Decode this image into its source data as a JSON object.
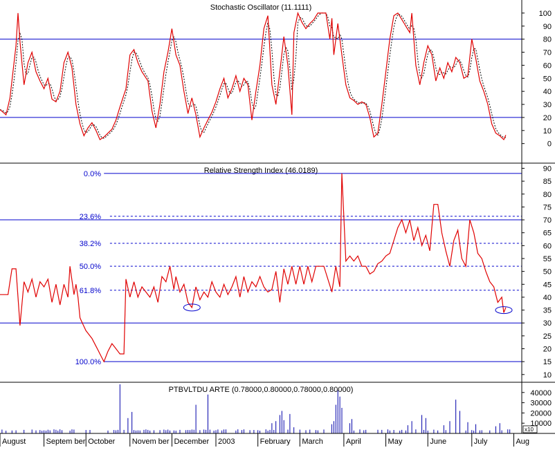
{
  "colors": {
    "background": "#ffffff",
    "frame": "#000000",
    "price_line": "#e00000",
    "signal_line": "#000000",
    "level_line": "#0000cc",
    "volume_bar": "#0000aa",
    "fib_label": "#0000cc"
  },
  "x_axis": {
    "month_labels": [
      "August",
      "Septem ber",
      "October",
      "Novem ber",
      "December",
      "2003",
      "February",
      "March",
      "April",
      "May",
      "June",
      "July",
      "Aug"
    ],
    "month_starts": [
      0,
      22,
      43,
      65,
      86,
      108,
      129,
      150,
      172,
      193,
      214,
      236,
      257
    ],
    "total_sessions": 262
  },
  "chart_data": [
    {
      "type": "line",
      "title": "Stochastic Oscillator (11.1111)",
      "ylim": [
        -15,
        110
      ],
      "yticks": [
        "0",
        "10",
        "20",
        "30",
        "40",
        "50",
        "60",
        "70",
        "80",
        "90",
        "100"
      ],
      "ytick_values": [
        0,
        10,
        20,
        30,
        40,
        50,
        60,
        70,
        80,
        90,
        100
      ],
      "levels": [
        20,
        80
      ],
      "anchors": [
        [
          0,
          26
        ],
        [
          3,
          22
        ],
        [
          5,
          35
        ],
        [
          8,
          75
        ],
        [
          9,
          100
        ],
        [
          10,
          78
        ],
        [
          12,
          45
        ],
        [
          14,
          62
        ],
        [
          16,
          70
        ],
        [
          18,
          55
        ],
        [
          20,
          48
        ],
        [
          22,
          42
        ],
        [
          24,
          50
        ],
        [
          26,
          34
        ],
        [
          28,
          32
        ],
        [
          30,
          40
        ],
        [
          32,
          62
        ],
        [
          34,
          70
        ],
        [
          36,
          58
        ],
        [
          38,
          30
        ],
        [
          40,
          15
        ],
        [
          42,
          6
        ],
        [
          44,
          12
        ],
        [
          46,
          16
        ],
        [
          48,
          10
        ],
        [
          50,
          3
        ],
        [
          52,
          5
        ],
        [
          54,
          8
        ],
        [
          56,
          11
        ],
        [
          58,
          18
        ],
        [
          60,
          28
        ],
        [
          63,
          42
        ],
        [
          65,
          68
        ],
        [
          67,
          72
        ],
        [
          69,
          62
        ],
        [
          71,
          55
        ],
        [
          74,
          48
        ],
        [
          76,
          25
        ],
        [
          78,
          12
        ],
        [
          80,
          30
        ],
        [
          82,
          55
        ],
        [
          84,
          70
        ],
        [
          86,
          88
        ],
        [
          88,
          68
        ],
        [
          90,
          60
        ],
        [
          92,
          40
        ],
        [
          94,
          23
        ],
        [
          96,
          35
        ],
        [
          98,
          22
        ],
        [
          100,
          5
        ],
        [
          102,
          12
        ],
        [
          104,
          18
        ],
        [
          106,
          24
        ],
        [
          108,
          32
        ],
        [
          110,
          42
        ],
        [
          112,
          50
        ],
        [
          114,
          35
        ],
        [
          116,
          42
        ],
        [
          118,
          52
        ],
        [
          120,
          40
        ],
        [
          122,
          50
        ],
        [
          124,
          45
        ],
        [
          126,
          18
        ],
        [
          128,
          40
        ],
        [
          130,
          60
        ],
        [
          132,
          88
        ],
        [
          134,
          98
        ],
        [
          136,
          45
        ],
        [
          138,
          30
        ],
        [
          140,
          55
        ],
        [
          142,
          82
        ],
        [
          144,
          60
        ],
        [
          146,
          22
        ],
        [
          147,
          85
        ],
        [
          149,
          100
        ],
        [
          151,
          93
        ],
        [
          153,
          88
        ],
        [
          155,
          92
        ],
        [
          157,
          95
        ],
        [
          159,
          100
        ],
        [
          163,
          100
        ],
        [
          165,
          80
        ],
        [
          166,
          96
        ],
        [
          167,
          68
        ],
        [
          168,
          80
        ],
        [
          169,
          92
        ],
        [
          171,
          68
        ],
        [
          173,
          45
        ],
        [
          175,
          35
        ],
        [
          177,
          33
        ],
        [
          179,
          30
        ],
        [
          181,
          32
        ],
        [
          183,
          30
        ],
        [
          185,
          20
        ],
        [
          187,
          5
        ],
        [
          189,
          8
        ],
        [
          191,
          30
        ],
        [
          193,
          55
        ],
        [
          195,
          80
        ],
        [
          197,
          98
        ],
        [
          199,
          100
        ],
        [
          201,
          95
        ],
        [
          203,
          90
        ],
        [
          205,
          85
        ],
        [
          206,
          100
        ],
        [
          208,
          60
        ],
        [
          210,
          45
        ],
        [
          212,
          62
        ],
        [
          214,
          75
        ],
        [
          216,
          68
        ],
        [
          218,
          48
        ],
        [
          220,
          58
        ],
        [
          222,
          50
        ],
        [
          224,
          62
        ],
        [
          226,
          55
        ],
        [
          228,
          66
        ],
        [
          230,
          62
        ],
        [
          232,
          50
        ],
        [
          234,
          52
        ],
        [
          236,
          80
        ],
        [
          238,
          65
        ],
        [
          240,
          48
        ],
        [
          242,
          40
        ],
        [
          244,
          30
        ],
        [
          246,
          15
        ],
        [
          248,
          8
        ],
        [
          250,
          6
        ],
        [
          252,
          3
        ],
        [
          254,
          10
        ]
      ],
      "signal_lag": 1
    },
    {
      "type": "line",
      "title": "Relative Strength Index (46.0189)",
      "ylim": [
        7,
        92
      ],
      "yticks": [
        "10",
        "15",
        "20",
        "25",
        "30",
        "35",
        "40",
        "45",
        "50",
        "55",
        "60",
        "65",
        "70",
        "75",
        "80",
        "85",
        "90"
      ],
      "ytick_values": [
        10,
        15,
        20,
        25,
        30,
        35,
        40,
        45,
        50,
        55,
        60,
        65,
        70,
        75,
        80,
        85,
        90
      ],
      "levels": [
        30,
        70
      ],
      "fibonacci": [
        {
          "label": "0.0%",
          "value": 88
        },
        {
          "label": "23.6%",
          "value": 71.4
        },
        {
          "label": "38.2%",
          "value": 60.9
        },
        {
          "label": "50.0%",
          "value": 52.0
        },
        {
          "label": "61.8%",
          "value": 42.7
        },
        {
          "label": "100.0%",
          "value": 15
        }
      ],
      "anchors": [
        [
          0,
          41
        ],
        [
          4,
          41
        ],
        [
          6,
          51
        ],
        [
          8,
          51
        ],
        [
          10,
          29
        ],
        [
          12,
          46
        ],
        [
          14,
          42
        ],
        [
          16,
          47
        ],
        [
          18,
          40
        ],
        [
          20,
          46
        ],
        [
          22,
          44
        ],
        [
          24,
          47
        ],
        [
          26,
          38
        ],
        [
          28,
          45
        ],
        [
          30,
          37
        ],
        [
          32,
          45
        ],
        [
          34,
          40
        ],
        [
          35,
          52
        ],
        [
          37,
          41
        ],
        [
          38,
          45
        ],
        [
          39,
          40
        ],
        [
          40,
          32
        ],
        [
          43,
          27
        ],
        [
          46,
          24
        ],
        [
          48,
          21
        ],
        [
          50,
          18
        ],
        [
          52,
          15
        ],
        [
          54,
          19
        ],
        [
          56,
          22
        ],
        [
          58,
          20
        ],
        [
          60,
          18
        ],
        [
          62,
          18
        ],
        [
          63,
          47
        ],
        [
          65,
          40
        ],
        [
          67,
          46
        ],
        [
          69,
          40
        ],
        [
          71,
          44
        ],
        [
          73,
          42
        ],
        [
          75,
          40
        ],
        [
          77,
          44
        ],
        [
          79,
          38
        ],
        [
          81,
          48
        ],
        [
          83,
          46
        ],
        [
          85,
          52
        ],
        [
          87,
          43
        ],
        [
          88,
          48
        ],
        [
          90,
          42
        ],
        [
          92,
          45
        ],
        [
          94,
          38
        ],
        [
          96,
          36
        ],
        [
          98,
          44
        ],
        [
          100,
          39
        ],
        [
          102,
          42
        ],
        [
          104,
          40
        ],
        [
          106,
          46
        ],
        [
          108,
          42
        ],
        [
          110,
          40
        ],
        [
          112,
          45
        ],
        [
          114,
          41
        ],
        [
          116,
          44
        ],
        [
          118,
          48
        ],
        [
          120,
          40
        ],
        [
          122,
          48
        ],
        [
          124,
          42
        ],
        [
          126,
          46
        ],
        [
          128,
          44
        ],
        [
          130,
          48
        ],
        [
          132,
          44
        ],
        [
          134,
          42
        ],
        [
          136,
          43
        ],
        [
          138,
          50
        ],
        [
          140,
          38
        ],
        [
          142,
          51
        ],
        [
          144,
          45
        ],
        [
          146,
          52
        ],
        [
          148,
          45
        ],
        [
          150,
          52
        ],
        [
          152,
          45
        ],
        [
          154,
          52
        ],
        [
          156,
          46
        ],
        [
          158,
          52
        ],
        [
          162,
          52
        ],
        [
          166,
          42
        ],
        [
          168,
          52
        ],
        [
          170,
          44
        ],
        [
          171,
          88
        ],
        [
          173,
          54
        ],
        [
          175,
          56
        ],
        [
          177,
          54
        ],
        [
          179,
          56
        ],
        [
          181,
          52
        ],
        [
          183,
          52
        ],
        [
          185,
          49
        ],
        [
          187,
          50
        ],
        [
          189,
          53
        ],
        [
          191,
          54
        ],
        [
          193,
          56
        ],
        [
          195,
          57
        ],
        [
          197,
          62
        ],
        [
          199,
          67
        ],
        [
          201,
          70
        ],
        [
          203,
          65
        ],
        [
          205,
          70
        ],
        [
          207,
          62
        ],
        [
          209,
          67
        ],
        [
          211,
          60
        ],
        [
          213,
          64
        ],
        [
          215,
          58
        ],
        [
          217,
          76
        ],
        [
          219,
          76
        ],
        [
          221,
          65
        ],
        [
          223,
          58
        ],
        [
          225,
          52
        ],
        [
          227,
          62
        ],
        [
          229,
          66
        ],
        [
          231,
          55
        ],
        [
          233,
          52
        ],
        [
          235,
          70
        ],
        [
          237,
          65
        ],
        [
          239,
          57
        ],
        [
          241,
          55
        ],
        [
          243,
          50
        ],
        [
          245,
          46
        ],
        [
          247,
          44
        ],
        [
          249,
          38
        ],
        [
          251,
          40
        ],
        [
          252,
          34
        ],
        [
          253,
          36
        ],
        [
          254,
          46
        ]
      ],
      "annotations": [
        {
          "type": "ellipse",
          "session": 96,
          "value": 36
        },
        {
          "type": "ellipse",
          "session": 252,
          "value": 35
        }
      ]
    },
    {
      "type": "bar",
      "title": "PTBVLTDU ARTE (0.78000,0.80000,0.78000,0.80000)",
      "ylim": [
        0,
        50000
      ],
      "yticks": [
        "10000",
        "20000",
        "30000",
        "40000"
      ],
      "ytick_values": [
        10000,
        20000,
        30000,
        40000
      ],
      "unit_label": "x10",
      "spikes": [
        [
          60,
          48000
        ],
        [
          64,
          15000
        ],
        [
          66,
          21000
        ],
        [
          98,
          28000
        ],
        [
          104,
          38000
        ],
        [
          136,
          10000
        ],
        [
          138,
          12000
        ],
        [
          140,
          18000
        ],
        [
          141,
          22000
        ],
        [
          142,
          13000
        ],
        [
          145,
          19000
        ],
        [
          147,
          6000
        ],
        [
          166,
          9000
        ],
        [
          167,
          12000
        ],
        [
          168,
          28000
        ],
        [
          169,
          42000
        ],
        [
          170,
          36000
        ],
        [
          171,
          25000
        ],
        [
          175,
          10000
        ],
        [
          176,
          14000
        ],
        [
          204,
          8000
        ],
        [
          206,
          12000
        ],
        [
          211,
          18000
        ],
        [
          213,
          15000
        ],
        [
          222,
          8000
        ],
        [
          225,
          12000
        ],
        [
          228,
          33000
        ],
        [
          230,
          22000
        ],
        [
          234,
          11000
        ],
        [
          238,
          9000
        ],
        [
          248,
          7000
        ],
        [
          250,
          10000
        ]
      ]
    }
  ]
}
